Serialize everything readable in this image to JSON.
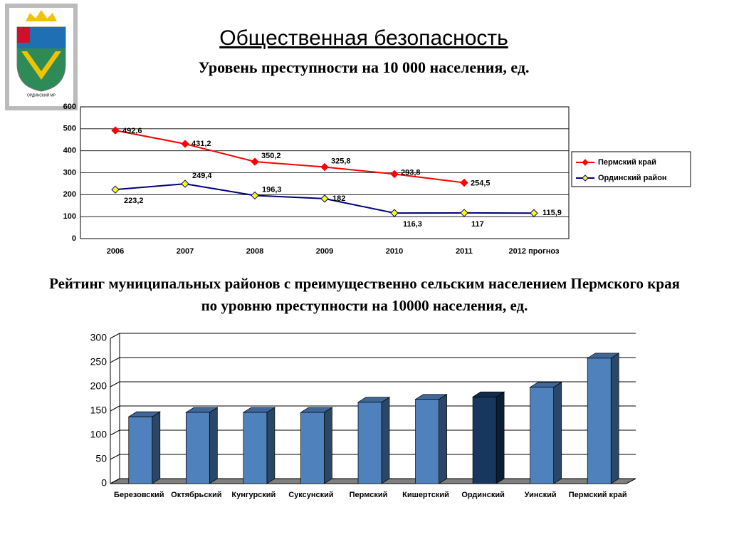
{
  "header": {
    "title": "Общественная безопасность",
    "logo_caption": "ОРДИНСКИЙ МР"
  },
  "chart_data": [
    {
      "type": "line",
      "title": "Уровень преступности на 10 000 населения, ед.",
      "categories": [
        "2006",
        "2007",
        "2008",
        "2009",
        "2010",
        "2011",
        "2012 прогноз"
      ],
      "series": [
        {
          "name": "Пермский край",
          "color": "#ff0000",
          "marker_fill": "#ff0000",
          "values": [
            492.6,
            431.2,
            350.2,
            325.8,
            293.8,
            254.5,
            null
          ],
          "value_labels": [
            "492,6",
            "431,2",
            "350,2",
            "325,8",
            "293,8",
            "254,5",
            null
          ]
        },
        {
          "name": "Ординский район",
          "color": "#000080",
          "marker_fill": "#ffff00",
          "values": [
            223.2,
            249.4,
            196.3,
            182,
            116.3,
            117,
            115.9
          ],
          "value_labels": [
            "223,2",
            "249,4",
            "196,3",
            "182",
            "116,3",
            "117",
            "115,9"
          ]
        }
      ],
      "ylim": [
        0,
        600
      ],
      "yticks": [
        0,
        100,
        200,
        300,
        400,
        500,
        600
      ],
      "grid": true,
      "legend": "right"
    },
    {
      "type": "bar3d",
      "title": "Рейтинг муниципальных районов с преимущественно сельским населением Пермского края по уровню преступности на 10000 населения, ед.",
      "categories": [
        "Березовский",
        "Октябрьский",
        "Кунгурский",
        "Суксунский",
        "Пермский",
        "Кишертский",
        "Ординский",
        "Уинский",
        "Пермский край"
      ],
      "values": [
        138,
        147,
        147,
        147,
        168,
        174,
        179,
        199,
        259
      ],
      "colors": [
        "#4f81bd",
        "#4f81bd",
        "#4f81bd",
        "#4f81bd",
        "#4f81bd",
        "#4f81bd",
        "#17375e",
        "#4f81bd",
        "#4f81bd"
      ],
      "ylim": [
        0,
        300
      ],
      "yticks": [
        0,
        50,
        100,
        150,
        200,
        250,
        300
      ],
      "grid": true
    }
  ]
}
